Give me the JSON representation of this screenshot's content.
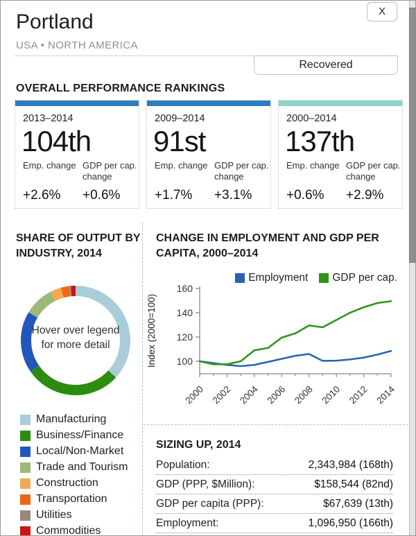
{
  "window": {
    "close_label": "X"
  },
  "header": {
    "title": "Portland",
    "subtitle": "USA • NORTH AMERICA",
    "status_tab": "Recovered"
  },
  "rankings": {
    "section_title": "OVERALL PERFORMANCE RANKINGS",
    "emp_change_label": "Emp. change",
    "gdp_change_label": "GDP per cap. change",
    "cards": [
      {
        "period": "2013–2014",
        "rank": "104th",
        "emp_change": "+2.6%",
        "gdp_change": "+0.6%",
        "bar_color": "#2e7bbf"
      },
      {
        "period": "2009–2014",
        "rank": "91st",
        "emp_change": "+1.7%",
        "gdp_change": "+3.1%",
        "bar_color": "#2e7bbf"
      },
      {
        "period": "2000–2014",
        "rank": "137th",
        "emp_change": "+0.6%",
        "gdp_change": "+2.9%",
        "bar_color": "#8fd2ca"
      }
    ]
  },
  "chart_data": [
    {
      "type": "pie",
      "donut": true,
      "title": "SHARE OF OUTPUT BY INDUSTRY, 2014",
      "labels": [
        "Manufacturing",
        "Business/Finance",
        "Local/Non-Market",
        "Trade and Tourism",
        "Construction",
        "Transportation",
        "Utilities",
        "Commodities"
      ],
      "values": [
        36.8,
        28.6,
        18.2,
        8.8,
        3.3,
        2.3,
        0.6,
        1.4
      ],
      "colors": [
        "#a9cdd9",
        "#2c8c10",
        "#2057b8",
        "#9eb878",
        "#f2aa52",
        "#ee6618",
        "#9c8678",
        "#cc1410"
      ],
      "center_note_line1": "Hover over legend",
      "center_note_line2": "for more detail",
      "legend_position": "bottom-left"
    },
    {
      "type": "line",
      "title": "CHANGE IN EMPLOYMENT AND GDP PER CAPITA, 2000–2014",
      "ylabel": "Index (2000=100)",
      "ylim": [
        90,
        160
      ],
      "yticks": [
        100,
        120,
        140,
        160
      ],
      "x": [
        2000,
        2001,
        2002,
        2003,
        2004,
        2005,
        2006,
        2007,
        2008,
        2009,
        2010,
        2011,
        2012,
        2013,
        2014
      ],
      "xtick_labeled": [
        2000,
        2002,
        2004,
        2006,
        2008,
        2010,
        2012,
        2014
      ],
      "legend_position": "top-right",
      "series": [
        {
          "name": "Employment",
          "color": "#2a62b2",
          "values": [
            100,
            98.5,
            97,
            96,
            97,
            99.5,
            102,
            104.5,
            106,
            100.3,
            100.5,
            101.5,
            103,
            105.5,
            108.5
          ]
        },
        {
          "name": "GDP per cap.",
          "color": "#2f9416",
          "values": [
            100,
            97.5,
            97.5,
            100,
            109,
            111,
            119.5,
            123,
            129.5,
            128,
            134,
            140,
            144.5,
            148,
            149.5
          ]
        }
      ]
    }
  ],
  "sizing": {
    "section_title": "SIZING UP, 2014",
    "rows": [
      {
        "label": "Population:",
        "value": "2,343,984 (168th)"
      },
      {
        "label": "GDP (PPP, $Million):",
        "value": "$158,544 (82nd)"
      },
      {
        "label": "GDP per capita (PPP):",
        "value": "$67,639 (13th)"
      },
      {
        "label": "Employment:",
        "value": "1,096,950 (166th)"
      }
    ]
  }
}
